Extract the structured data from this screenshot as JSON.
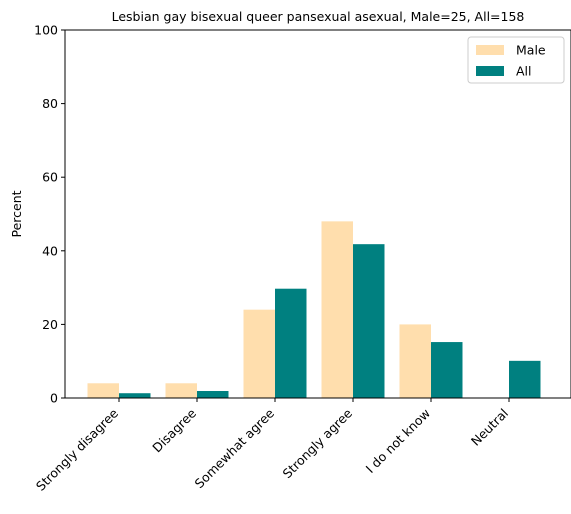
{
  "chart_data": {
    "type": "bar",
    "title": "Lesbian gay bisexual queer pansexual asexual, Male=25, All=158",
    "xlabel": "",
    "ylabel": "Percent",
    "ylim": [
      0,
      100
    ],
    "yticks": [
      0,
      20,
      40,
      60,
      80,
      100
    ],
    "categories": [
      "Strongly disagree",
      "Disagree",
      "Somewhat agree",
      "Strongly agree",
      "I do not know",
      "Neutral"
    ],
    "series": [
      {
        "name": "Male",
        "color": "#ffdead",
        "values": [
          4,
          4,
          24,
          48,
          20,
          0
        ]
      },
      {
        "name": "All",
        "color": "#008080",
        "values": [
          1.3,
          1.9,
          29.7,
          41.8,
          15.2,
          10.1
        ]
      }
    ],
    "legend": "top-right",
    "grid": false
  }
}
